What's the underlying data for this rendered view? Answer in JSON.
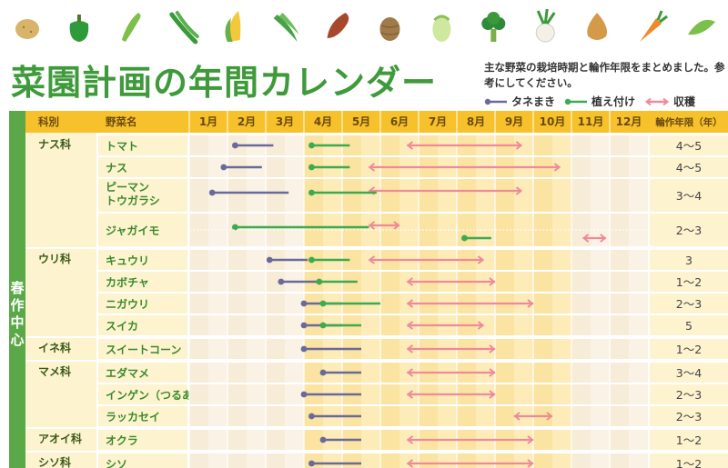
{
  "title": "菜園計画の年間カレンダー",
  "description": "主な野菜の栽培時期と輪作年限をまとめました。参考にしてください。",
  "legend": {
    "sow": "タネまき",
    "plant": "植え付け",
    "harvest": "収穫"
  },
  "colors": {
    "sow": "#6a6a9a",
    "plant": "#3cab4f",
    "harvest": "#ef8a9a",
    "accent_green": "#5aa847",
    "header_orange": "#f6c12a"
  },
  "icons": [
    "potato-icon",
    "green-pepper-icon",
    "cucumber-icon",
    "green-bean-icon",
    "corn-icon",
    "okra-icon",
    "sweet-potato-icon",
    "taro-icon",
    "cabbage-icon",
    "broccoli-icon",
    "turnip-icon",
    "onion-icon",
    "carrot-icon",
    "pea-pod-icon"
  ],
  "headers": {
    "family": "科別",
    "vegetable": "野菜名",
    "rotation": "輪作年限（年）",
    "months": [
      "1月",
      "2月",
      "3月",
      "4月",
      "5月",
      "6月",
      "7月",
      "8月",
      "9月",
      "10月",
      "11月",
      "12月"
    ]
  },
  "season_label": "春作中心",
  "chart_data": {
    "type": "gantt",
    "x_unit": "month",
    "x_range": [
      1,
      13
    ],
    "groups": [
      {
        "family": "ナス科",
        "rows": [
          {
            "name": "トマト",
            "sow": [
              2.2,
              3.2
            ],
            "plant": [
              4.2,
              5.2
            ],
            "harvest": [
              [
                6.7,
                9.7
              ]
            ],
            "rotation": "4～5"
          },
          {
            "name": "ナス",
            "sow": [
              1.9,
              2.9
            ],
            "plant": [
              4.2,
              5.2
            ],
            "harvest": [
              [
                5.7,
                10.7
              ]
            ],
            "rotation": "4～5"
          },
          {
            "name": "ピーマン\nトウガラシ",
            "sow": [
              1.6,
              3.6
            ],
            "plant": [
              4.2,
              5.9
            ],
            "harvest": [
              [
                5.7,
                9.7
              ]
            ],
            "rotation": "3～4",
            "tall": true
          },
          {
            "name": "ジャガイモ",
            "plant": [
              2.2,
              5.7
            ],
            "harvest": [
              [
                5.7,
                6.5
              ]
            ],
            "plant2": [
              8.2,
              8.9
            ],
            "harvest2": [
              [
                11.3,
                11.9
              ]
            ],
            "rotation": "2～3",
            "tall": true
          }
        ]
      },
      {
        "family": "ウリ科",
        "rows": [
          {
            "name": "キュウリ",
            "sow": [
              3.1,
              4.1
            ],
            "plant": [
              4.2,
              5.2
            ],
            "harvest": [
              [
                5.7,
                8.7
              ]
            ],
            "rotation": "3"
          },
          {
            "name": "カボチャ",
            "sow": [
              3.4,
              4.4
            ],
            "plant": [
              4.4,
              5.4
            ],
            "harvest": [
              [
                6.7,
                9.0
              ]
            ],
            "rotation": "1～2"
          },
          {
            "name": "ニガウリ",
            "sow": [
              4.0,
              5.0
            ],
            "plant": [
              4.5,
              6.0
            ],
            "harvest": [
              [
                6.7,
                10.0
              ]
            ],
            "rotation": "2～3"
          },
          {
            "name": "スイカ",
            "sow": [
              4.0,
              5.0
            ],
            "plant": [
              4.5,
              5.5
            ],
            "harvest": [
              [
                6.7,
                8.7
              ]
            ],
            "rotation": "5"
          }
        ]
      },
      {
        "family": "イネ科",
        "rows": [
          {
            "name": "スイートコーン",
            "sow": [
              4.0,
              5.5
            ],
            "harvest": [
              [
                6.7,
                9.0
              ]
            ],
            "rotation": "1～2"
          }
        ]
      },
      {
        "family": "マメ科",
        "rows": [
          {
            "name": "エダマメ",
            "sow": [
              4.5,
              5.5
            ],
            "harvest": [
              [
                6.7,
                9.0
              ]
            ],
            "rotation": "3～4"
          },
          {
            "name": "インゲン（つるあり）",
            "sow": [
              4.0,
              5.5
            ],
            "harvest": [
              [
                6.7,
                9.0
              ]
            ],
            "rotation": "2～3"
          },
          {
            "name": "ラッカセイ",
            "sow": [
              4.2,
              5.5
            ],
            "harvest": [
              [
                9.5,
                10.5
              ]
            ],
            "rotation": "2～3"
          }
        ]
      },
      {
        "family": "アオイ科",
        "rows": [
          {
            "name": "オクラ",
            "sow": [
              4.5,
              5.5
            ],
            "harvest": [
              [
                6.7,
                10.0
              ]
            ],
            "rotation": "1～2"
          }
        ]
      },
      {
        "family": "シソ科",
        "rows": [
          {
            "name": "シソ",
            "sow": [
              4.2,
              5.5
            ],
            "harvest": [
              [
                6.7,
                10.0
              ]
            ],
            "rotation": "1～2"
          }
        ]
      }
    ]
  }
}
